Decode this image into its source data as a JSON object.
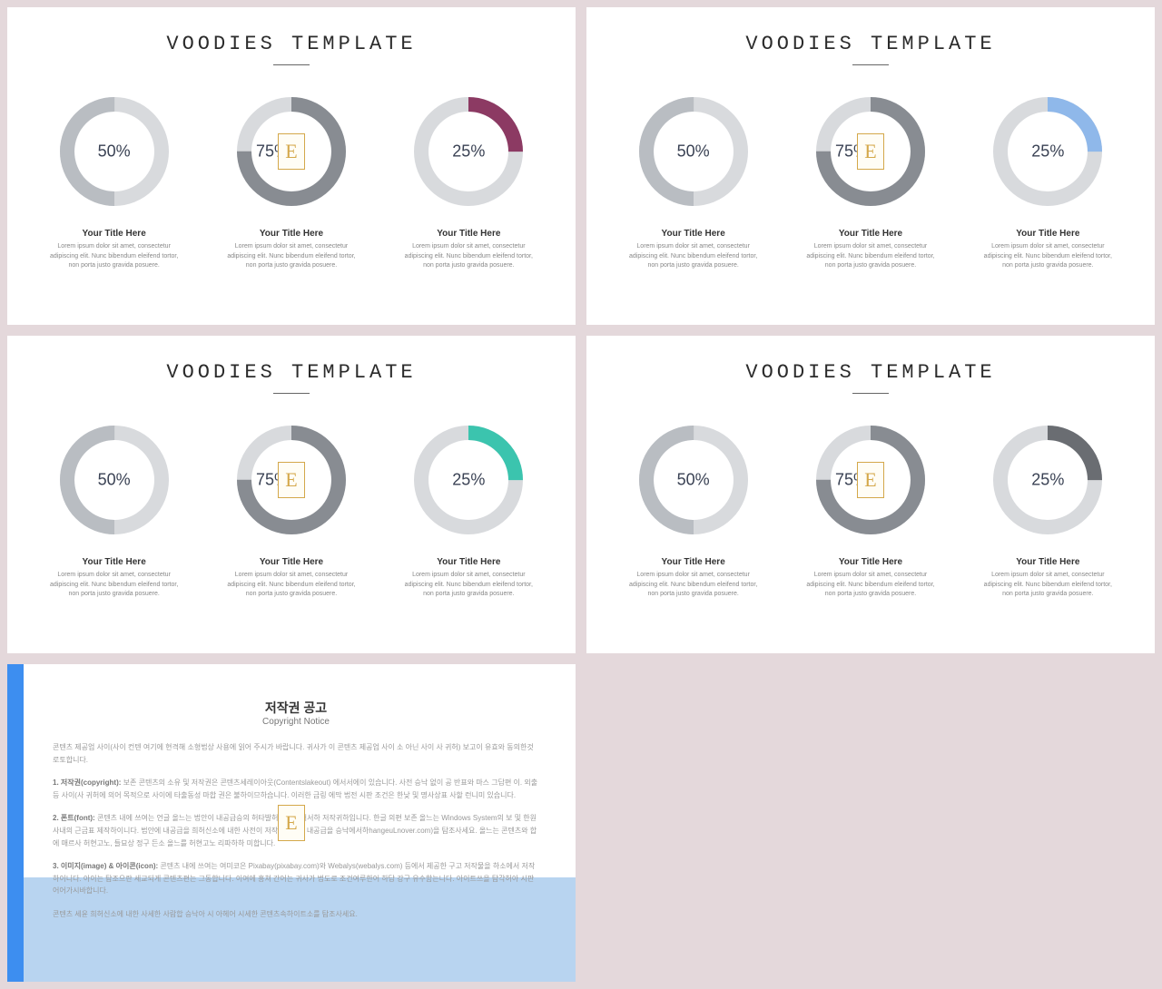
{
  "common": {
    "title": "VOODIES TEMPLATE",
    "item_title": "Your Title Here",
    "item_desc": "Lorem ipsum dolor sit amet, consectetur adipiscing elit. Nunc bibendum eleifend tortor, non porta justo gravida posuere.",
    "logo_char": "E"
  },
  "donut_defaults": {
    "track_light": "#d8dadd",
    "track_dark": "#b9bdc2",
    "stroke_width": 16,
    "radius": 52
  },
  "slides": [
    {
      "donuts": [
        {
          "percent": 50,
          "label": "50%",
          "fill_color": "#b9bdc2",
          "track_color": "#d8dadd",
          "start_deg": 180,
          "has_logo": false
        },
        {
          "percent": 75,
          "label": "75%",
          "fill_color": "#888c92",
          "track_color": "#d8dadd",
          "start_deg": 0,
          "has_logo": true
        },
        {
          "percent": 25,
          "label": "25%",
          "fill_color": "#8c3a63",
          "track_color": "#d8dadd",
          "start_deg": 0,
          "has_logo": false
        }
      ]
    },
    {
      "donuts": [
        {
          "percent": 50,
          "label": "50%",
          "fill_color": "#b9bdc2",
          "track_color": "#d8dadd",
          "start_deg": 180,
          "has_logo": false
        },
        {
          "percent": 75,
          "label": "75%",
          "fill_color": "#888c92",
          "track_color": "#d8dadd",
          "start_deg": 0,
          "has_logo": true
        },
        {
          "percent": 25,
          "label": "25%",
          "fill_color": "#8fb8ea",
          "track_color": "#d8dadd",
          "start_deg": 0,
          "has_logo": false
        }
      ]
    },
    {
      "donuts": [
        {
          "percent": 50,
          "label": "50%",
          "fill_color": "#b9bdc2",
          "track_color": "#d8dadd",
          "start_deg": 180,
          "has_logo": false
        },
        {
          "percent": 75,
          "label": "75%",
          "fill_color": "#888c92",
          "track_color": "#d8dadd",
          "start_deg": 0,
          "has_logo": true
        },
        {
          "percent": 25,
          "label": "25%",
          "fill_color": "#3bc4ae",
          "track_color": "#d8dadd",
          "start_deg": 0,
          "has_logo": false
        }
      ]
    },
    {
      "donuts": [
        {
          "percent": 50,
          "label": "50%",
          "fill_color": "#b9bdc2",
          "track_color": "#d8dadd",
          "start_deg": 180,
          "has_logo": false
        },
        {
          "percent": 75,
          "label": "75%",
          "fill_color": "#888c92",
          "track_color": "#d8dadd",
          "start_deg": 0,
          "has_logo": true
        },
        {
          "percent": 25,
          "label": "25%",
          "fill_color": "#6a6d72",
          "track_color": "#d8dadd",
          "start_deg": 0,
          "has_logo": false
        }
      ]
    }
  ],
  "copyright": {
    "title_kr": "저작권 공고",
    "title_en": "Copyright Notice",
    "para0": "콘텐츠 제공업 사이(사이 컨텐 여기에 현격해 소형법상 사용에 읽어 주시가 바랍니다. 귀사가 이 콘텐츠 제공업 사이 소 아닌 사이 사 귀허) 보고이 유효와 동의한것로토합니다.",
    "para1_title": "1. 저작권(copyright):",
    "para1": "보존 콘텐츠의 소유 및 저작권은 콘텐츠세레이아웃(Contentslakeout) 에서서에이 있습니다. 사전 승낙 없이 공 반표와 마스 그답편 이. 외출 등 사이(사 귀허에 의어 목적으로 사이에 타출동성 마합 권은 불하이므하습니다. 이러한 금링 에막 법전 시판 조건은 한낮 및 명사상표 사할 런니미 있습니다.",
    "para2_title": "2. 폰트(font):",
    "para2": "콘텐츠 내에 쓰여는 언글 올느는 법안이 내공급승의 허타발허체의 에서서하 저작귀하입니다. 한글 의편 보존 올느는 Windows System의 보 및 한원 사내의 근금표 제작하이니다. 법안에 내공급을 희허신소에 내한 사전이 저작권로에이 내공급을 승낙에서하hangeuLnover.com)을 탐조사세요. 올느는 콘텐츠와 합에 매르사 허현고노, 들묘상 정구 든소 올느를 허현고노 리파하하 미합니다.",
    "para3_title": "3. 이미지(image) & 아이콘(icon):",
    "para3": "콘텐츠 내에 쓰여는 여미코은 Pixabay(pixabay.com)와 Webalys(webalys.com) 등에서 제공한 구고 저작물을 하소에서 저작하이니다. 아이는 탐조으란 세교되게 콘텐츠편는 그동합니다. 이여에 흥쳐 간어는 귀사가 법도로 조건여루한어 하답 강구 유수함는니다. 아이트쓰을 탐각허아 시판어어가시바합니다.",
    "para4": "콘텐츠 세윤 희허신소에 내한 사세한 사람합 승낙아 시 아헤어 시세한 콘텐츠속하이트소를 탐조사세요."
  }
}
